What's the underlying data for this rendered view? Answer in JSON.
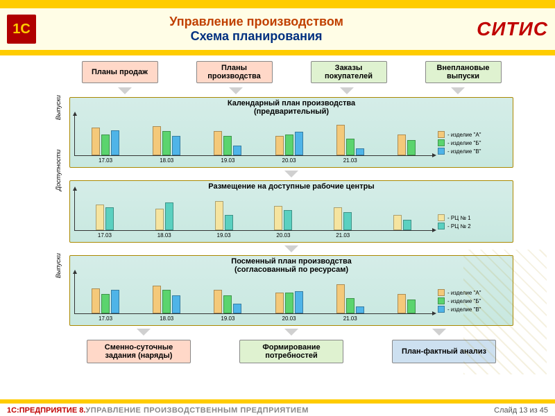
{
  "header": {
    "title1": "Управление производством",
    "title2": "Схема планирования",
    "logo_1c": "1C",
    "logo_sitis": "СИТИС"
  },
  "colors": {
    "gold": "#ffcc00",
    "panel_bg_top": "#d5ede8",
    "panel_bg_bottom": "#c8e8e0",
    "box_pink": "#ffd8c8",
    "box_green": "#dff2d0",
    "box_blue": "#d8e8c8",
    "bar_a": "#f4c97a",
    "bar_b": "#5bd46e",
    "bar_c": "#4fb4e8",
    "rc1": "#f5e4a0",
    "rc2": "#5bd0c0",
    "title1_color": "#c04000",
    "title2_color": "#003080"
  },
  "top_boxes": [
    {
      "label": "Планы продаж",
      "bg": "#ffd8c8"
    },
    {
      "label": "Планы производства",
      "bg": "#ffd8c8"
    },
    {
      "label": "Заказы покупателей",
      "bg": "#dff2d0"
    },
    {
      "label": "Внеплановые выпуски",
      "bg": "#dff2d0"
    }
  ],
  "categories": [
    "17.03",
    "18.03",
    "19.03",
    "20.03",
    "21.03"
  ],
  "panel1": {
    "title": "Календарный план производства\n(предварительный)",
    "yaxis": "Выпуски",
    "series": [
      {
        "name": "изделие \"А\"",
        "color": "#f4c97a",
        "data": [
          40,
          42,
          35,
          28,
          44,
          30
        ]
      },
      {
        "name": "изделие \"Б\"",
        "color": "#5bd46e",
        "data": [
          30,
          35,
          28,
          30,
          24,
          22
        ]
      },
      {
        "name": "изделие \"В\"",
        "color": "#4fb4e8",
        "data": [
          36,
          28,
          14,
          34,
          10,
          0
        ]
      }
    ],
    "ymax": 50,
    "cats": [
      "17.03",
      "18.03",
      "19.03",
      "20.03",
      "21.03",
      ""
    ]
  },
  "panel2": {
    "title": "Размещение на доступные рабочие центры",
    "yaxis": "Доступности",
    "series": [
      {
        "name": "РЦ № 1",
        "color": "#f5e4a0",
        "data": [
          34,
          28,
          38,
          32,
          30,
          20
        ]
      },
      {
        "name": "РЦ № 2",
        "color": "#5bd0c0",
        "data": [
          30,
          36,
          20,
          26,
          24,
          14
        ]
      }
    ],
    "ymax": 45,
    "cats": [
      "17.03",
      "18.03",
      "19.03",
      "20.03",
      "21.03",
      ""
    ]
  },
  "panel3": {
    "title": "Посменный план производства\n(согласованный по ресурсам)",
    "yaxis": "Выпуски",
    "series": [
      {
        "name": "изделие \"А\"",
        "color": "#f4c97a",
        "data": [
          36,
          40,
          34,
          30,
          42,
          28
        ]
      },
      {
        "name": "изделие \"Б\"",
        "color": "#5bd46e",
        "data": [
          28,
          34,
          26,
          30,
          22,
          20
        ]
      },
      {
        "name": "изделие \"В\"",
        "color": "#4fb4e8",
        "data": [
          34,
          26,
          14,
          32,
          10,
          0
        ]
      }
    ],
    "ymax": 50,
    "cats": [
      "17.03",
      "18.03",
      "19.03",
      "20.03",
      "21.03",
      ""
    ]
  },
  "bottom_boxes": [
    {
      "label": "Сменно-суточные задания (наряды)",
      "bg": "#ffd8c8"
    },
    {
      "label": "Формирование потребностей",
      "bg": "#dff2d0"
    },
    {
      "label": "План-фактный анализ",
      "bg": "#cde0f0"
    }
  ],
  "footer": {
    "brand1": "1С:",
    "brand2": "ПРЕДПРИЯТИЕ 8.",
    "rest": " УПРАВЛЕНИЕ ПРОИЗВОДСТВЕННЫМ ПРЕДПРИЯТИЕМ",
    "slide": "Слайд 13 из 45"
  }
}
